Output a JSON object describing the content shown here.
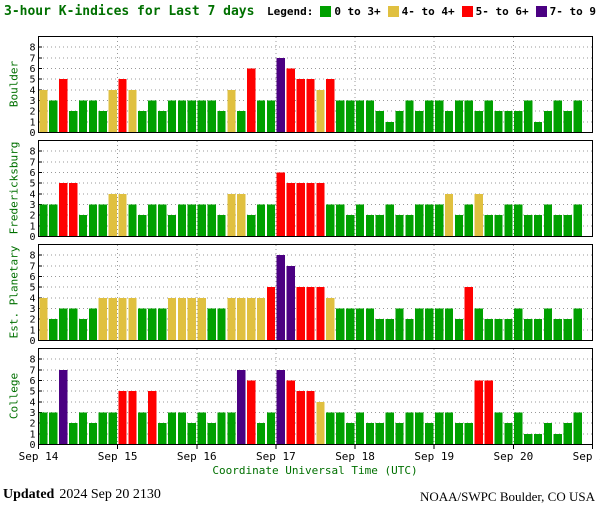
{
  "header": {
    "title": "3-hour K-indices for Last 7 days",
    "legend_label": "Legend:"
  },
  "legend_items": [
    {
      "label": "0 to 3+",
      "color": "#00A000"
    },
    {
      "label": "4- to 4+",
      "color": "#E0C040"
    },
    {
      "label": "5- to 6+",
      "color": "#FF0000"
    },
    {
      "label": "7- to 9",
      "color": "#4B0082"
    }
  ],
  "x_axis": {
    "label": "Coordinate Universal Time (UTC)",
    "tick_labels": [
      "Sep 14",
      "Sep 15",
      "Sep 16",
      "Sep 17",
      "Sep 18",
      "Sep 19",
      "Sep 20",
      "Sep 21"
    ]
  },
  "y_axis": {
    "tick_labels": [
      "0",
      "1",
      "2",
      "3",
      "4",
      "5",
      "6",
      "7",
      "8"
    ],
    "max": 9
  },
  "footer": {
    "updated_label": "Updated",
    "updated_value": "2024 Sep 20 2130",
    "source": "NOAA/SWPC Boulder, CO USA"
  },
  "chart_data": {
    "type": "bar",
    "title": "3-hour K-indices for Last 7 days",
    "xlabel": "Coordinate Universal Time (UTC)",
    "x_start": "Sep 14",
    "x_end": "Sep 21",
    "bars_per_day": 8,
    "ylim": [
      0,
      9
    ],
    "grid": true,
    "legend_position": "top-right",
    "color_bins": [
      {
        "range": "0-3",
        "color": "#00A000"
      },
      {
        "range": "4",
        "color": "#E0C040"
      },
      {
        "range": "5-6",
        "color": "#FF0000"
      },
      {
        "range": "7-9",
        "color": "#4B0082"
      }
    ],
    "series": [
      {
        "name": "Boulder",
        "values": [
          4,
          3,
          5,
          2,
          3,
          3,
          2,
          4,
          5,
          4,
          2,
          3,
          2,
          3,
          3,
          3,
          3,
          3,
          2,
          4,
          2,
          6,
          3,
          3,
          7,
          6,
          5,
          5,
          4,
          5,
          3,
          3,
          3,
          3,
          2,
          1,
          2,
          3,
          2,
          3,
          3,
          2,
          3,
          3,
          2,
          3,
          2,
          2,
          2,
          3,
          1,
          2,
          3,
          2,
          3
        ]
      },
      {
        "name": "Fredericksburg",
        "values": [
          3,
          3,
          5,
          5,
          2,
          3,
          3,
          4,
          4,
          3,
          2,
          3,
          3,
          2,
          3,
          3,
          3,
          3,
          2,
          4,
          4,
          2,
          3,
          3,
          6,
          5,
          5,
          5,
          5,
          3,
          3,
          2,
          3,
          2,
          2,
          3,
          2,
          2,
          3,
          3,
          3,
          4,
          2,
          3,
          4,
          2,
          2,
          3,
          3,
          2,
          2,
          3,
          2,
          2,
          3
        ]
      },
      {
        "name": "Est. Planetary",
        "values": [
          4,
          2,
          3,
          3,
          2,
          3,
          4,
          4,
          4,
          4,
          3,
          3,
          3,
          4,
          4,
          4,
          4,
          3,
          3,
          4,
          4,
          4,
          4,
          5,
          8,
          7,
          5,
          5,
          5,
          4,
          3,
          3,
          3,
          3,
          2,
          2,
          3,
          2,
          3,
          3,
          3,
          3,
          2,
          5,
          3,
          2,
          2,
          2,
          3,
          2,
          2,
          3,
          2,
          2,
          3
        ]
      },
      {
        "name": "College",
        "values": [
          3,
          3,
          7,
          2,
          3,
          2,
          3,
          3,
          5,
          5,
          3,
          5,
          2,
          3,
          3,
          2,
          3,
          2,
          3,
          3,
          7,
          6,
          2,
          3,
          7,
          6,
          5,
          5,
          4,
          3,
          3,
          2,
          3,
          2,
          2,
          3,
          2,
          3,
          3,
          2,
          3,
          3,
          2,
          2,
          6,
          6,
          3,
          2,
          3,
          1,
          1,
          2,
          1,
          2,
          3
        ]
      }
    ]
  }
}
